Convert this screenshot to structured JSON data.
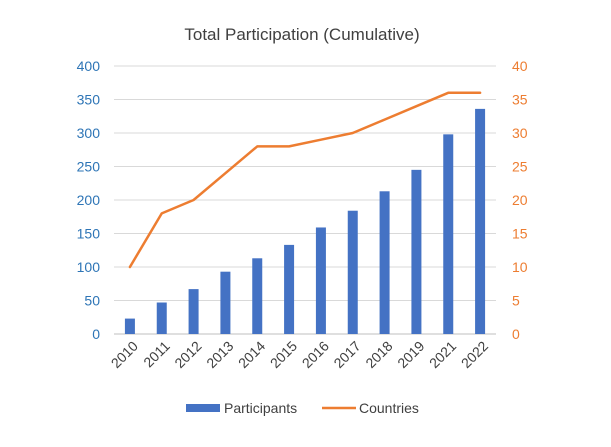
{
  "chart_data": {
    "type": "bar",
    "title": "Total Participation (Cumulative)",
    "categories": [
      "2010",
      "2011",
      "2012",
      "2013",
      "2014",
      "2015",
      "2016",
      "2017",
      "2018",
      "2019",
      "2021",
      "2022"
    ],
    "series": [
      {
        "name": "Participants",
        "type": "bar",
        "axis": "left",
        "color": "#4472c4",
        "values": [
          23,
          47,
          67,
          93,
          113,
          133,
          159,
          184,
          213,
          245,
          298,
          336
        ]
      },
      {
        "name": "Countries",
        "type": "line",
        "axis": "right",
        "color": "#ed7d31",
        "values": [
          10,
          18,
          20,
          24,
          28,
          28,
          29,
          30,
          32,
          34,
          36,
          36
        ]
      }
    ],
    "y_left": {
      "min": 0,
      "max": 400,
      "step": 50,
      "ticks": [
        "0",
        "50",
        "100",
        "150",
        "200",
        "250",
        "300",
        "350",
        "400"
      ],
      "color": "#2e75b6"
    },
    "y_right": {
      "min": 0,
      "max": 40,
      "step": 5,
      "ticks": [
        "0",
        "5",
        "10",
        "15",
        "20",
        "25",
        "30",
        "35",
        "40"
      ],
      "color": "#ed7d31"
    },
    "grid": true,
    "legend_position": "bottom"
  }
}
